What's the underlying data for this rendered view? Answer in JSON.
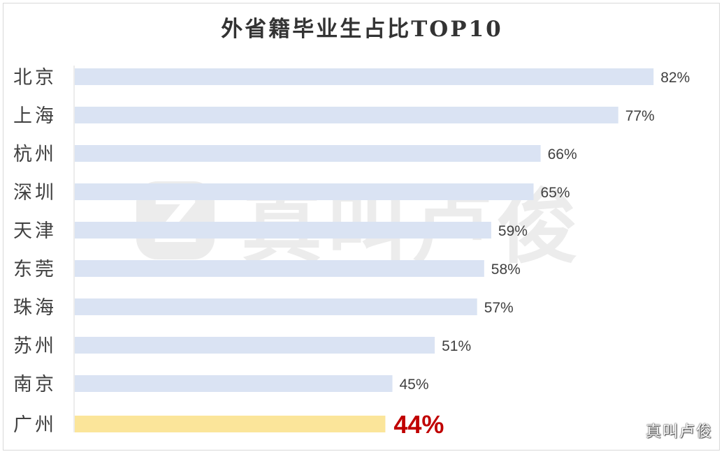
{
  "chart_data": {
    "type": "bar",
    "orientation": "horizontal",
    "title": "外省籍毕业生占比TOP10",
    "categories": [
      "北京",
      "上海",
      "杭州",
      "深圳",
      "天津",
      "东莞",
      "珠海",
      "苏州",
      "南京",
      "广州"
    ],
    "values": [
      82,
      77,
      66,
      65,
      59,
      58,
      57,
      51,
      45,
      44
    ],
    "value_labels": [
      "82%",
      "77%",
      "66%",
      "65%",
      "59%",
      "58%",
      "57%",
      "51%",
      "45%",
      "44%"
    ],
    "xlim": [
      0,
      100
    ],
    "grid": false,
    "legend": "none",
    "highlight_category": "广州",
    "colors": {
      "bar": "#dae3f3",
      "highlight_bar": "#fbe59a",
      "label": "#404040",
      "highlight_label": "#c00000",
      "axis": "#d9d9d9",
      "category_text": "#404040"
    }
  },
  "watermark": {
    "logo_glyph": "Z",
    "text": "真叫卢俊"
  },
  "corner_mark": "真叫卢俊"
}
